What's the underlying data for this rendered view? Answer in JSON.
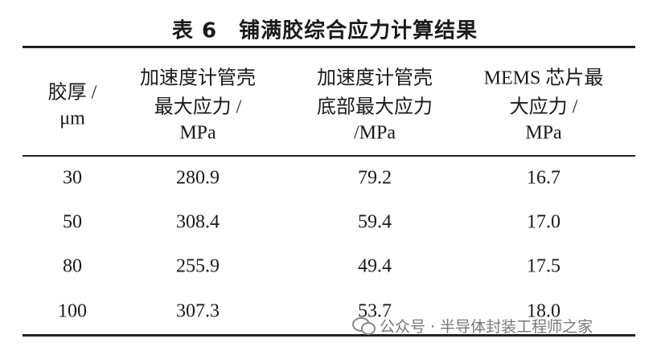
{
  "table": {
    "title": "表 6　铺满胶综合应力计算结果",
    "headers": [
      [
        "胶厚 /",
        "μm"
      ],
      [
        "加速度计管壳",
        "最大应力 /",
        "MPa"
      ],
      [
        "加速度计管壳",
        "底部最大应力",
        "/MPa"
      ],
      [
        "MEMS 芯片最",
        "大应力 /",
        "MPa"
      ]
    ],
    "rows": [
      [
        "30",
        "280.9",
        "79.2",
        "16.7"
      ],
      [
        "50",
        "308.4",
        "59.4",
        "17.0"
      ],
      [
        "80",
        "255.9",
        "49.4",
        "17.5"
      ],
      [
        "100",
        "307.3",
        "53.7",
        "18.0"
      ]
    ]
  },
  "watermark": "公众号 · 半导体封装工程师之家"
}
